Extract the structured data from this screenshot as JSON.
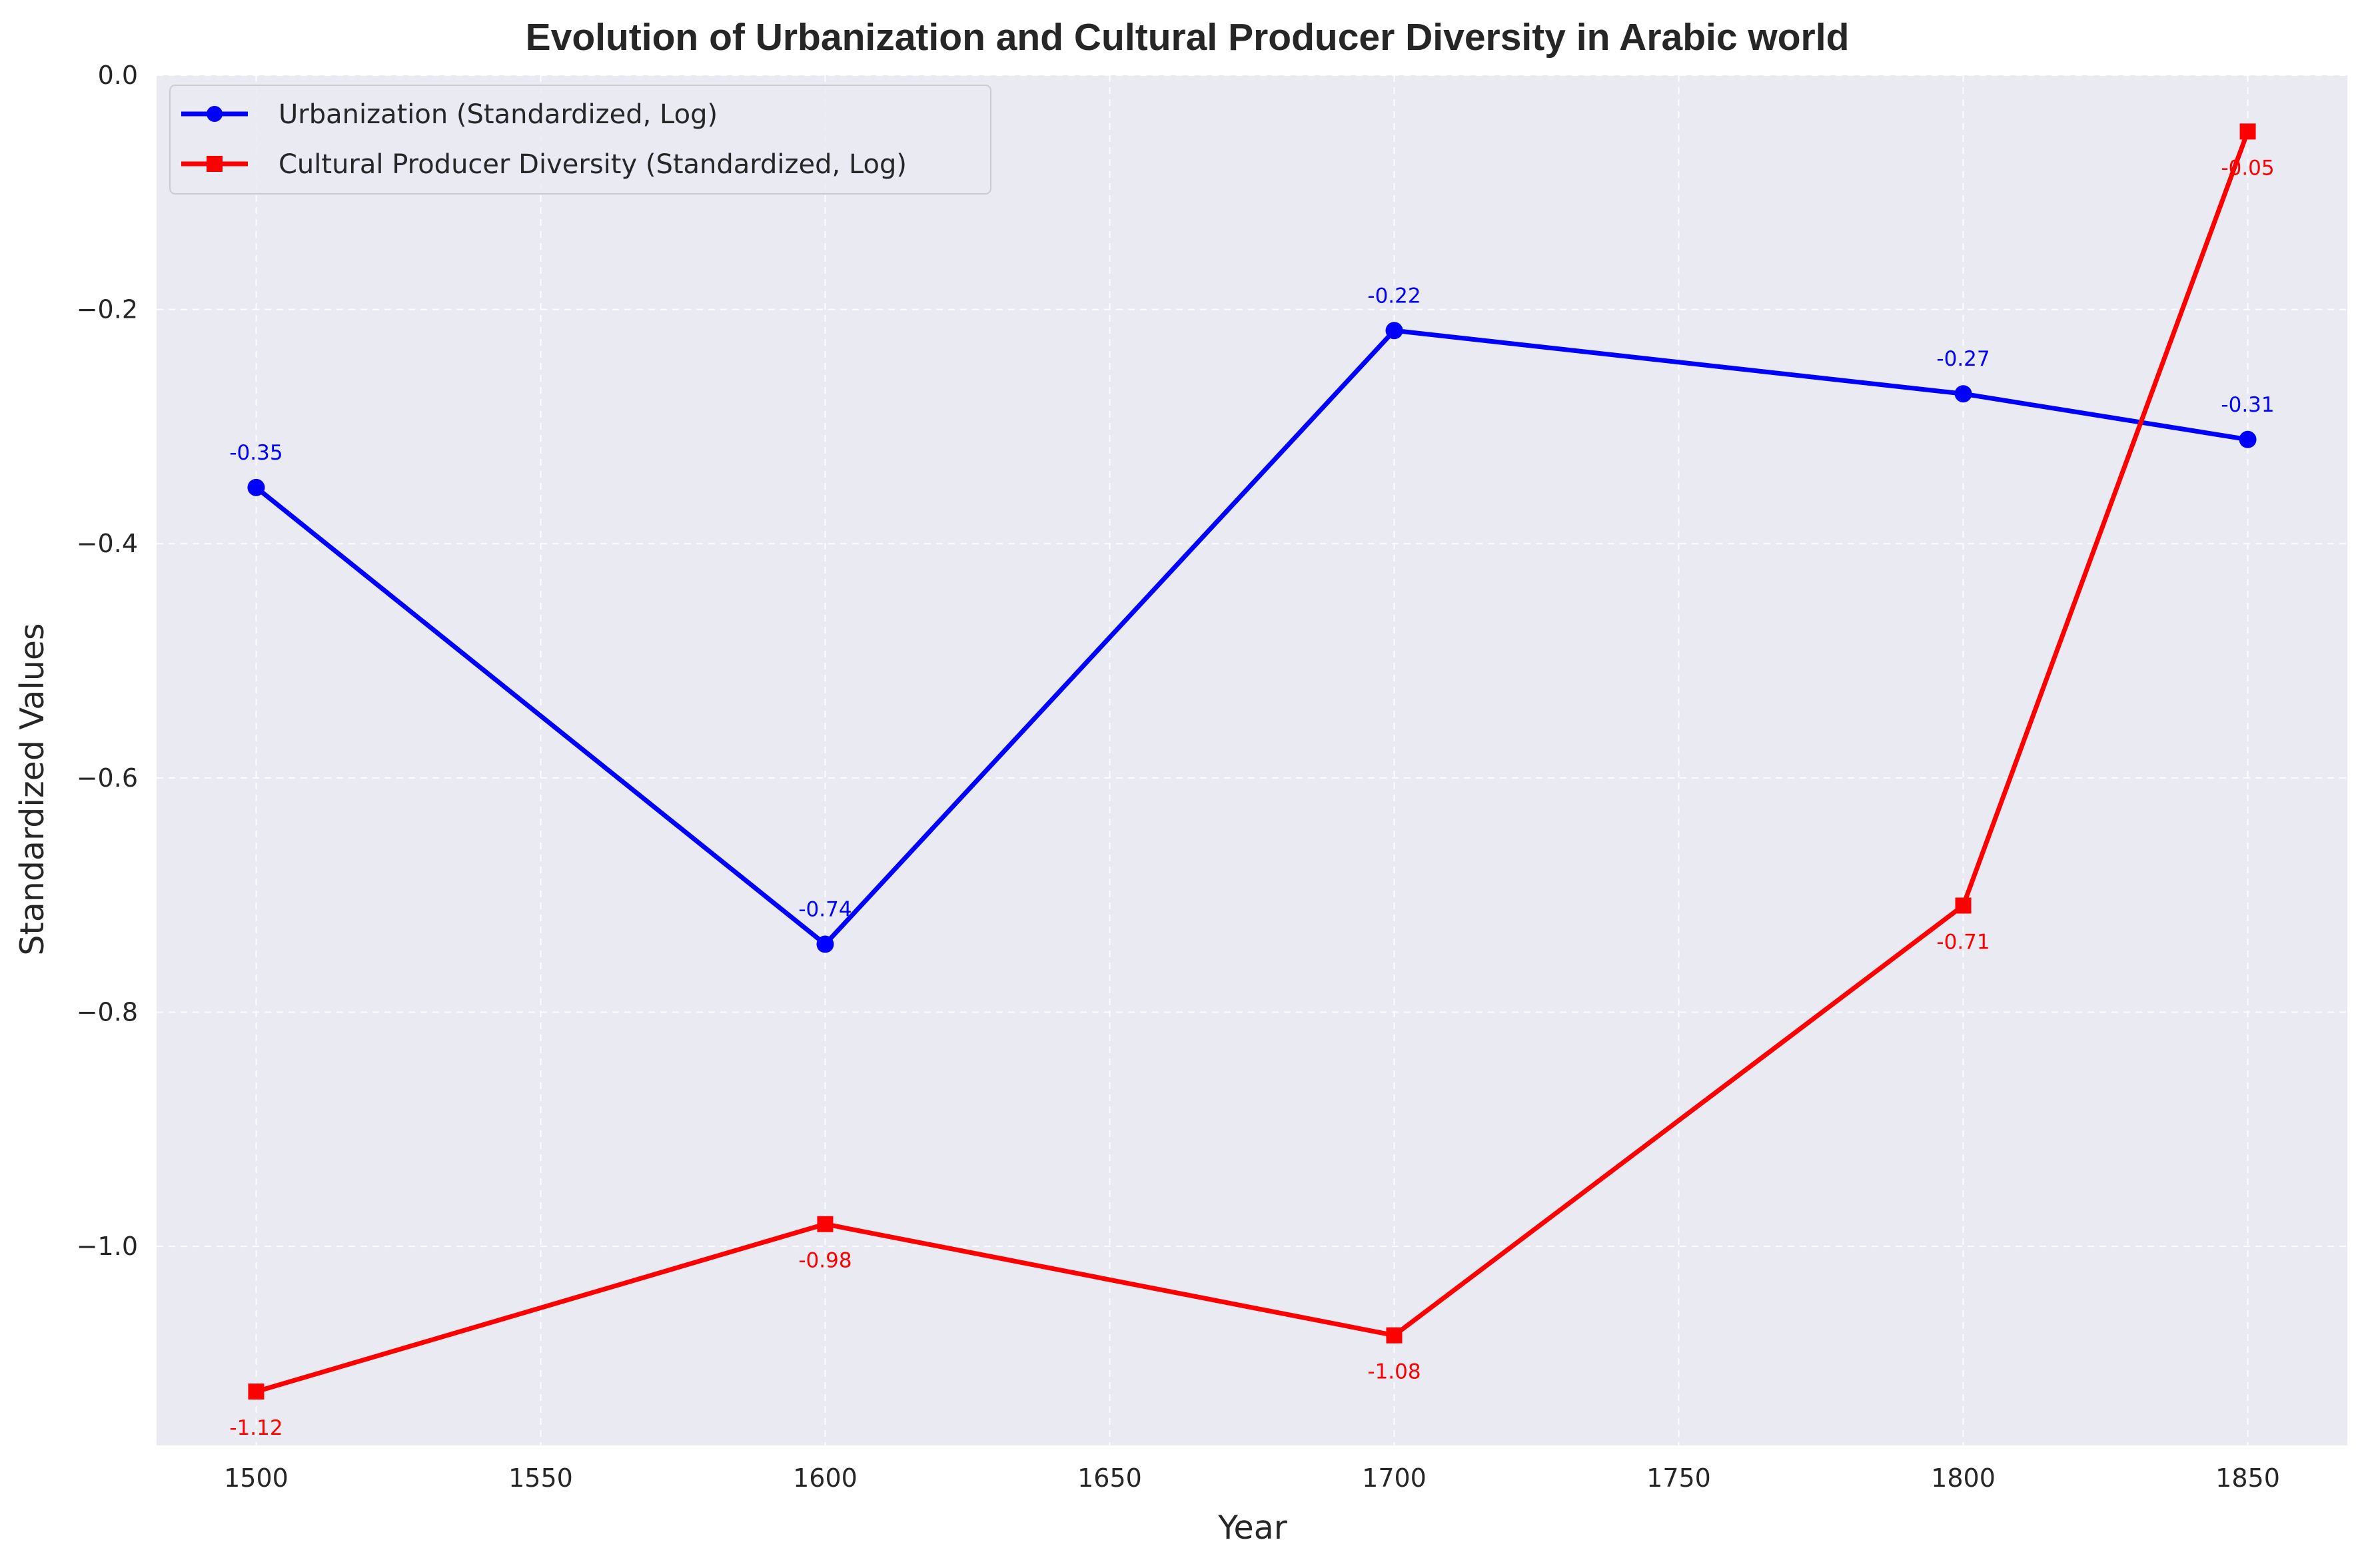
{
  "chart_data": {
    "type": "line",
    "title": "Evolution of Urbanization and Cultural Producer Diversity in Arabic world",
    "xlabel": "Year",
    "ylabel": "Standardized Values",
    "x": [
      1500,
      1600,
      1700,
      1800,
      1850
    ],
    "xlim": [
      1482.5,
      1867.5
    ],
    "ylim": [
      -1.17,
      0.0
    ],
    "xticks": [
      1500,
      1550,
      1600,
      1650,
      1700,
      1750,
      1800,
      1850
    ],
    "yticks": [
      0.0,
      -0.2,
      -0.4,
      -0.6,
      -0.8,
      -1.0
    ],
    "ytick_labels": [
      "0.0",
      "−0.2",
      "−0.4",
      "−0.6",
      "−0.8",
      "−1.0"
    ],
    "grid": true,
    "legend_position": "top-left",
    "background": "#eaeaf2",
    "series": [
      {
        "name": "Urbanization (Standardized, Log)",
        "color": "#0000ff",
        "marker": "circle",
        "values": [
          -0.352,
          -0.742,
          -0.218,
          -0.272,
          -0.311
        ],
        "labels": [
          "-0.35",
          "-0.74",
          "-0.22",
          "-0.27",
          "-0.31"
        ],
        "label_side": "above"
      },
      {
        "name": "Cultural Producer Diversity (Standardized, Log)",
        "color": "#ff0000",
        "marker": "square",
        "values": [
          -1.124,
          -0.981,
          -1.076,
          -0.709,
          -0.048
        ],
        "labels": [
          "-1.12",
          "-0.98",
          "-1.08",
          "-0.71",
          "-0.05"
        ],
        "label_side": "below"
      }
    ]
  }
}
